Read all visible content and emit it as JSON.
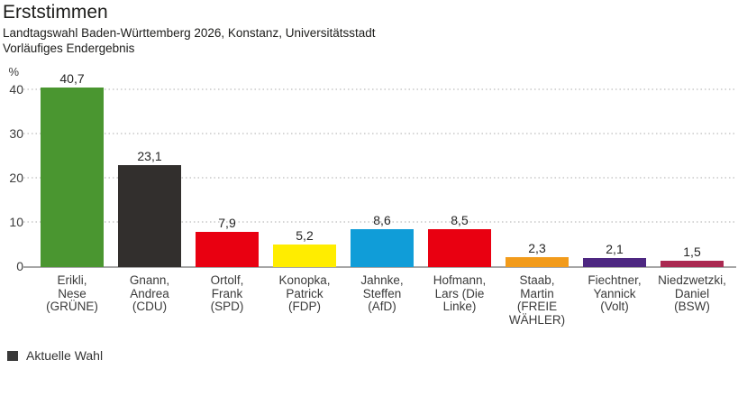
{
  "chart_data": {
    "type": "bar",
    "title": "Erststimmen",
    "subtitle_line1": "Landtagswahl Baden-Württemberg 2026, Konstanz, Universitätsstadt",
    "subtitle_line2": "Vorläufiges Endergebnis",
    "unit": "%",
    "candidates": [
      "Erikli, Nese",
      "Gnann, Andrea",
      "Ortolf, Frank",
      "Konopka, Patrick",
      "Jahnke, Steffen",
      "Hofmann, Lars",
      "Staab, Martin",
      "Fiechtner, Yannick",
      "Niedzwetzki, Daniel"
    ],
    "parties": [
      "GRÜNE",
      "CDU",
      "SPD",
      "FDP",
      "AfD",
      "Die Linke",
      "FREIE WÄHLER",
      "Volt",
      "BSW"
    ],
    "categories": [
      "Erikli,\nNese\n(GRÜNE)",
      "Gnann,\nAndrea\n(CDU)",
      "Ortolf,\nFrank\n(SPD)",
      "Konopka,\nPatrick\n(FDP)",
      "Jahnke,\nSteffen\n(AfD)",
      "Hofmann,\nLars (Die\nLinke)",
      "Staab,\nMartin\n(FREIE\nWÄHLER)",
      "Fiechtner,\nYannick\n(Volt)",
      "Niedzwetzki,\nDaniel\n(BSW)"
    ],
    "values": [
      40.7,
      23.1,
      7.9,
      5.2,
      8.6,
      8.5,
      2.3,
      2.1,
      1.5
    ],
    "value_labels": [
      "40,7",
      "23,1",
      "7,9",
      "5,2",
      "8,6",
      "8,5",
      "2,3",
      "2,1",
      "1,5"
    ],
    "bar_colors": [
      "#4a9630",
      "#322f2d",
      "#e90011",
      "#ffed00",
      "#109dd8",
      "#e90011",
      "#f29b1b",
      "#4d2781",
      "#aa2951"
    ],
    "y_ticks": [
      0,
      10,
      20,
      30,
      40
    ],
    "ylim": [
      0,
      43.3
    ],
    "grid": "horizontal-dotted",
    "legend": {
      "label": "Aktuelle Wahl",
      "color": "#3a3a3a",
      "position": "bottom-left"
    }
  }
}
